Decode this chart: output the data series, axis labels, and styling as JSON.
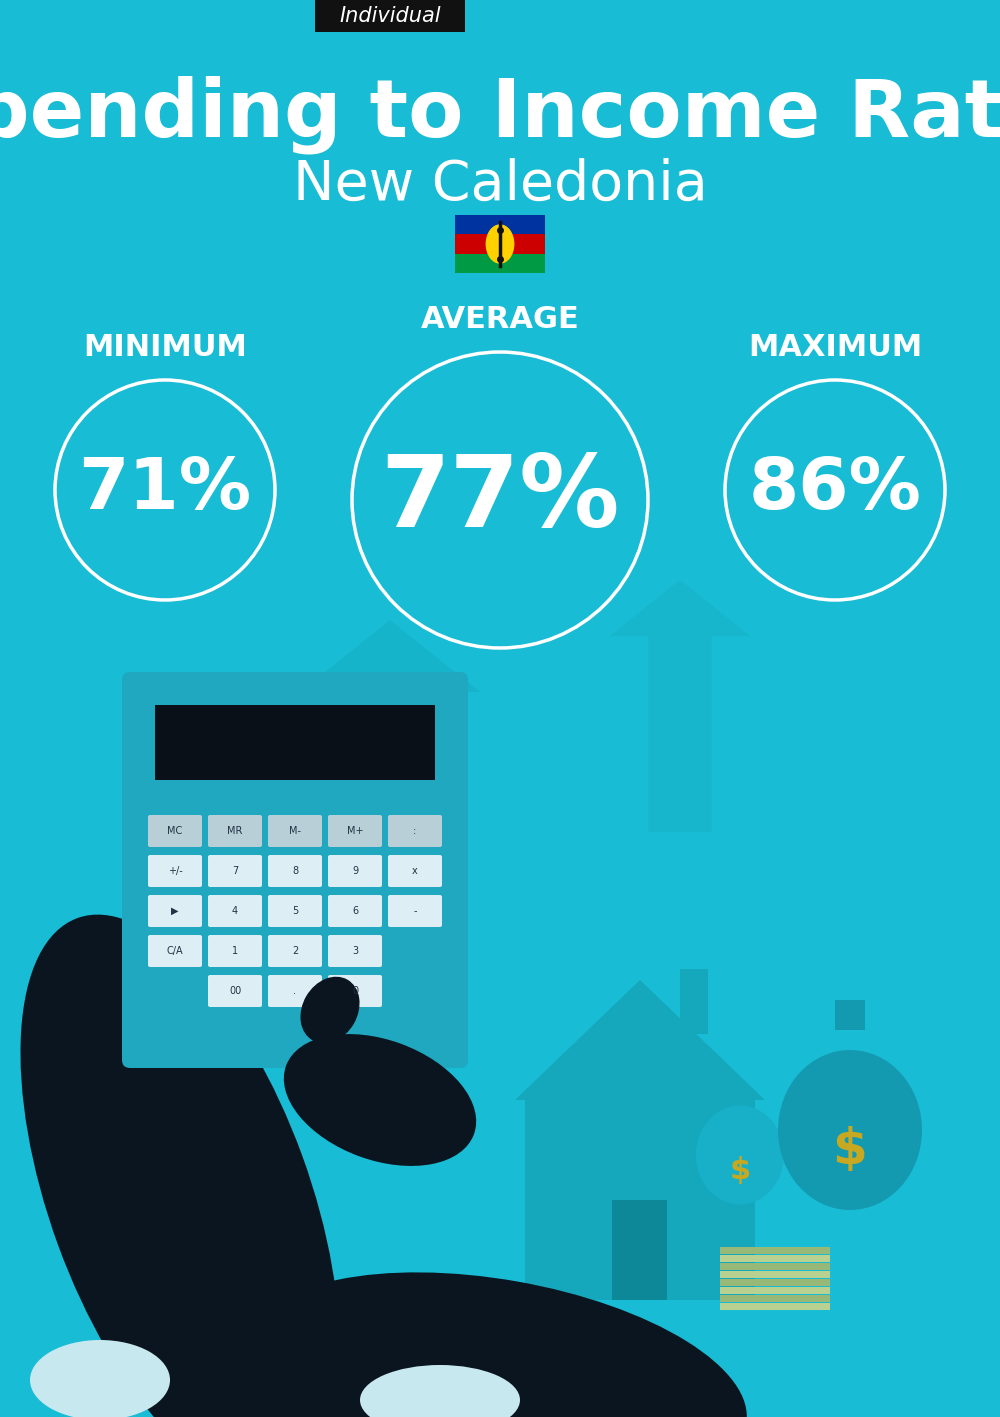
{
  "title_line1": "Spending to Income Ratio",
  "title_line2": "New Caledonia",
  "badge_text": "Individual",
  "badge_bg": "#111111",
  "badge_text_color": "#ffffff",
  "bg_color": "#18bcd4",
  "text_color": "#ffffff",
  "min_label": "MINIMUM",
  "avg_label": "AVERAGE",
  "max_label": "MAXIMUM",
  "min_value": "71%",
  "avg_value": "77%",
  "max_value": "86%",
  "fig_w": 10.0,
  "fig_h": 14.17,
  "dpi": 100,
  "arrow_color": "#16afc5",
  "house_color": "#15a8bc",
  "hand_color": "#0a1520",
  "calc_color": "#1fa8c0",
  "calc_screen_color": "#0a1018",
  "btn_light": "#ddeef5",
  "btn_dark_row": "#b8cfd8",
  "money_bag_color": "#15a0b8",
  "money_bag2_color": "#18b0c8",
  "shirt_color": "#c8e8f0",
  "door_color": "#0d8898"
}
